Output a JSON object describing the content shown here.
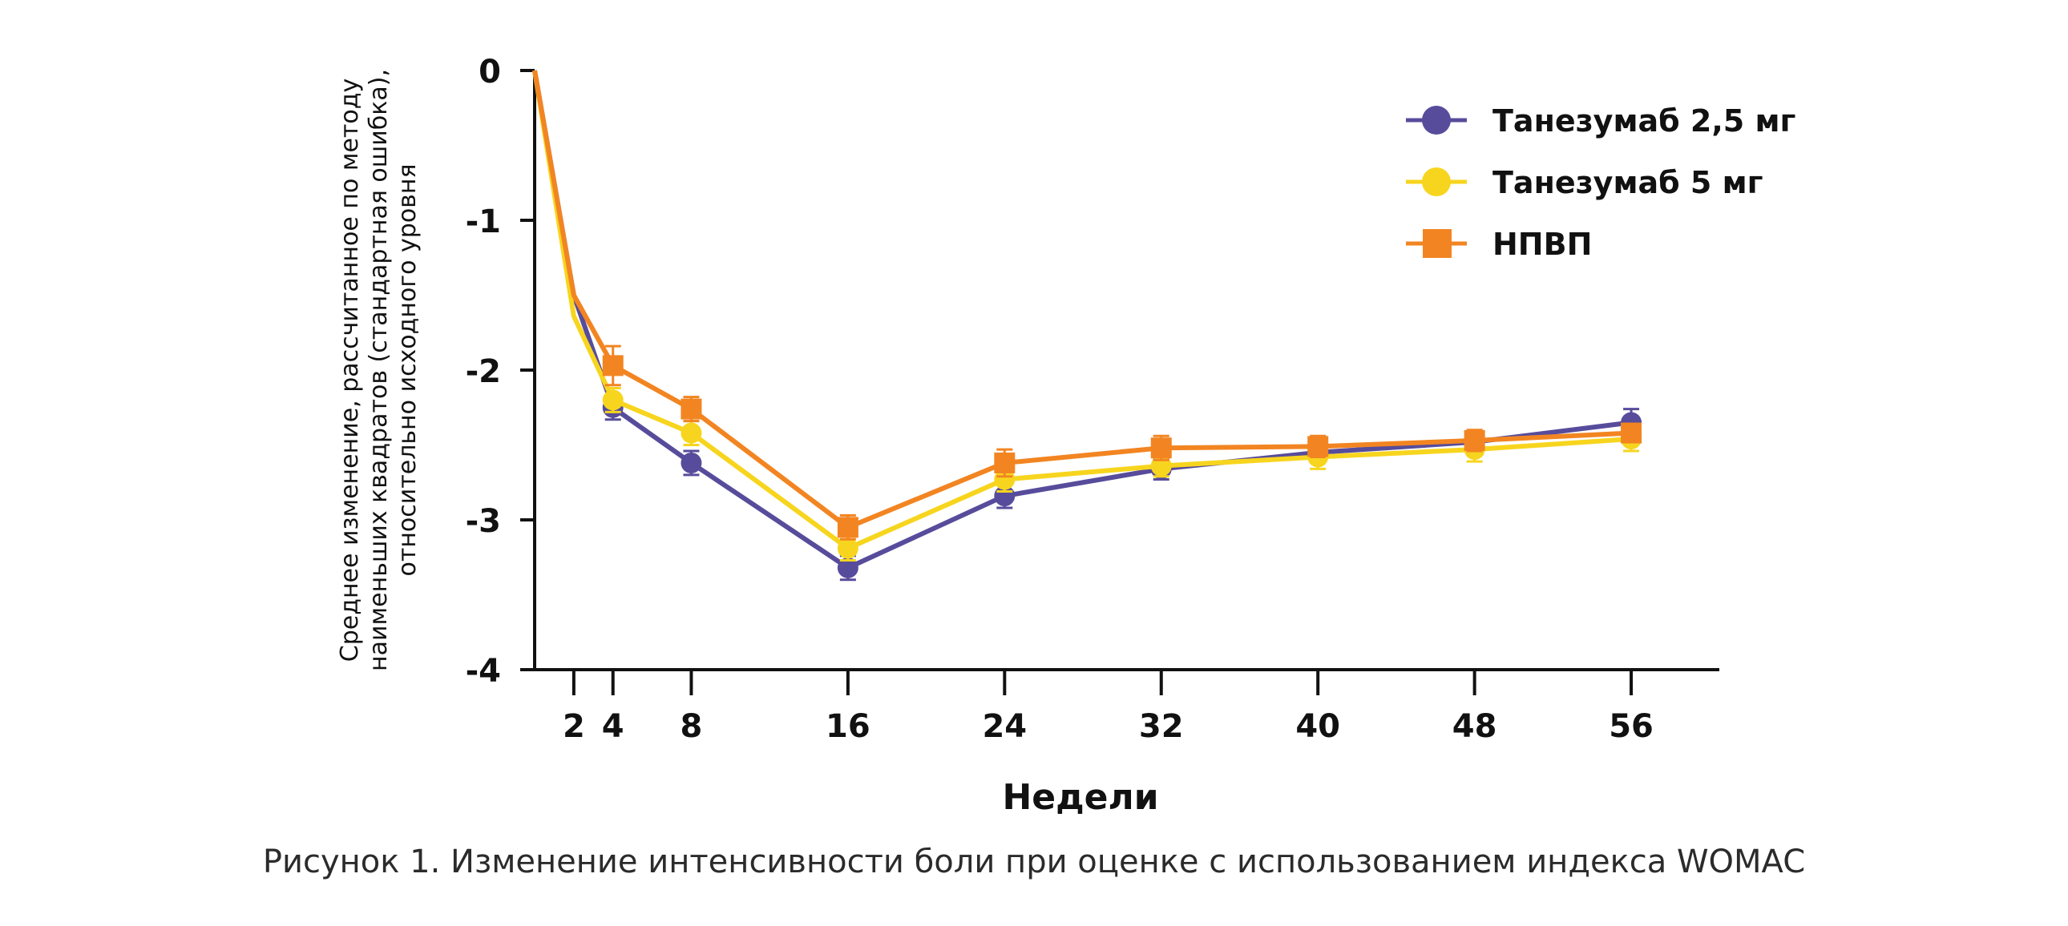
{
  "caption": "Рисунок 1. Изменение интенсивности боли при оценке с использованием индекса WOMAC",
  "chart_data": {
    "type": "line",
    "xlabel": "Недели",
    "ylabel_lines": [
      "Среднее изменение, рассчитанное по методу",
      "наименьших квадратов (стандартная ошибка),",
      "относительно исходного уровня"
    ],
    "x_ticks": [
      2,
      4,
      8,
      16,
      24,
      32,
      40,
      48,
      56
    ],
    "y_ticks": [
      0,
      -1,
      -2,
      -3,
      -4
    ],
    "xlim": [
      0,
      60.5
    ],
    "ylim": [
      -4,
      0
    ],
    "legend": "top-right",
    "series": [
      {
        "name": "Танезумаб 2,5 мг",
        "color": "#574c9b",
        "marker": "circle",
        "x": [
          0,
          2,
          4,
          8,
          16,
          24,
          32,
          40,
          48,
          56
        ],
        "y": [
          0,
          -1.5,
          -2.25,
          -2.62,
          -3.32,
          -2.84,
          -2.66,
          -2.55,
          -2.48,
          -2.35
        ],
        "err": [
          null,
          null,
          0.08,
          0.08,
          0.08,
          0.08,
          0.07,
          0.06,
          0.06,
          0.09
        ],
        "marker_from": 2
      },
      {
        "name": "Танезумаб 5 мг",
        "color": "#f7d51e",
        "marker": "circle",
        "x": [
          0,
          2,
          4,
          8,
          16,
          24,
          32,
          40,
          48,
          56
        ],
        "y": [
          0,
          -1.64,
          -2.2,
          -2.42,
          -3.19,
          -2.73,
          -2.64,
          -2.58,
          -2.53,
          -2.46
        ],
        "err": [
          null,
          null,
          0.08,
          0.08,
          0.08,
          0.08,
          0.07,
          0.08,
          0.08,
          0.08
        ],
        "marker_from": 2
      },
      {
        "name": "НПВП",
        "color": "#f28522",
        "marker": "square",
        "x": [
          0,
          2,
          4,
          8,
          16,
          24,
          32,
          40,
          48,
          56
        ],
        "y": [
          0,
          -1.5,
          -1.97,
          -2.26,
          -3.05,
          -2.62,
          -2.52,
          -2.51,
          -2.47,
          -2.42
        ],
        "err": [
          null,
          null,
          0.13,
          0.08,
          0.08,
          0.09,
          0.08,
          0.07,
          0.07,
          0.06
        ],
        "marker_from": 2
      }
    ]
  }
}
